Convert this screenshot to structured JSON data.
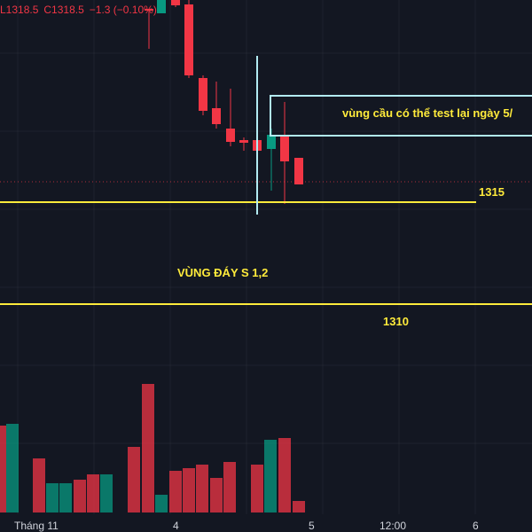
{
  "ohlc": {
    "low": "L1318.5",
    "close": "C1318.5",
    "change": "−1.3 (−0.10%)"
  },
  "annotations": {
    "demand_zone_text": "vùng cầu có thể test lại ngày 5/",
    "level_1315": "1315",
    "bottom_zone_text": "VÙNG ĐÁY S 1,2",
    "level_1310": "1310"
  },
  "x_axis_labels": [
    "Tháng 11",
    "4",
    "5",
    "12:00",
    "6"
  ],
  "colors": {
    "background": "#131722",
    "bull": "#089981",
    "bear": "#f23645",
    "level_line": "#ffeb3b",
    "zone_line": "#b2ebf2",
    "grid": "#2a2e39"
  }
}
